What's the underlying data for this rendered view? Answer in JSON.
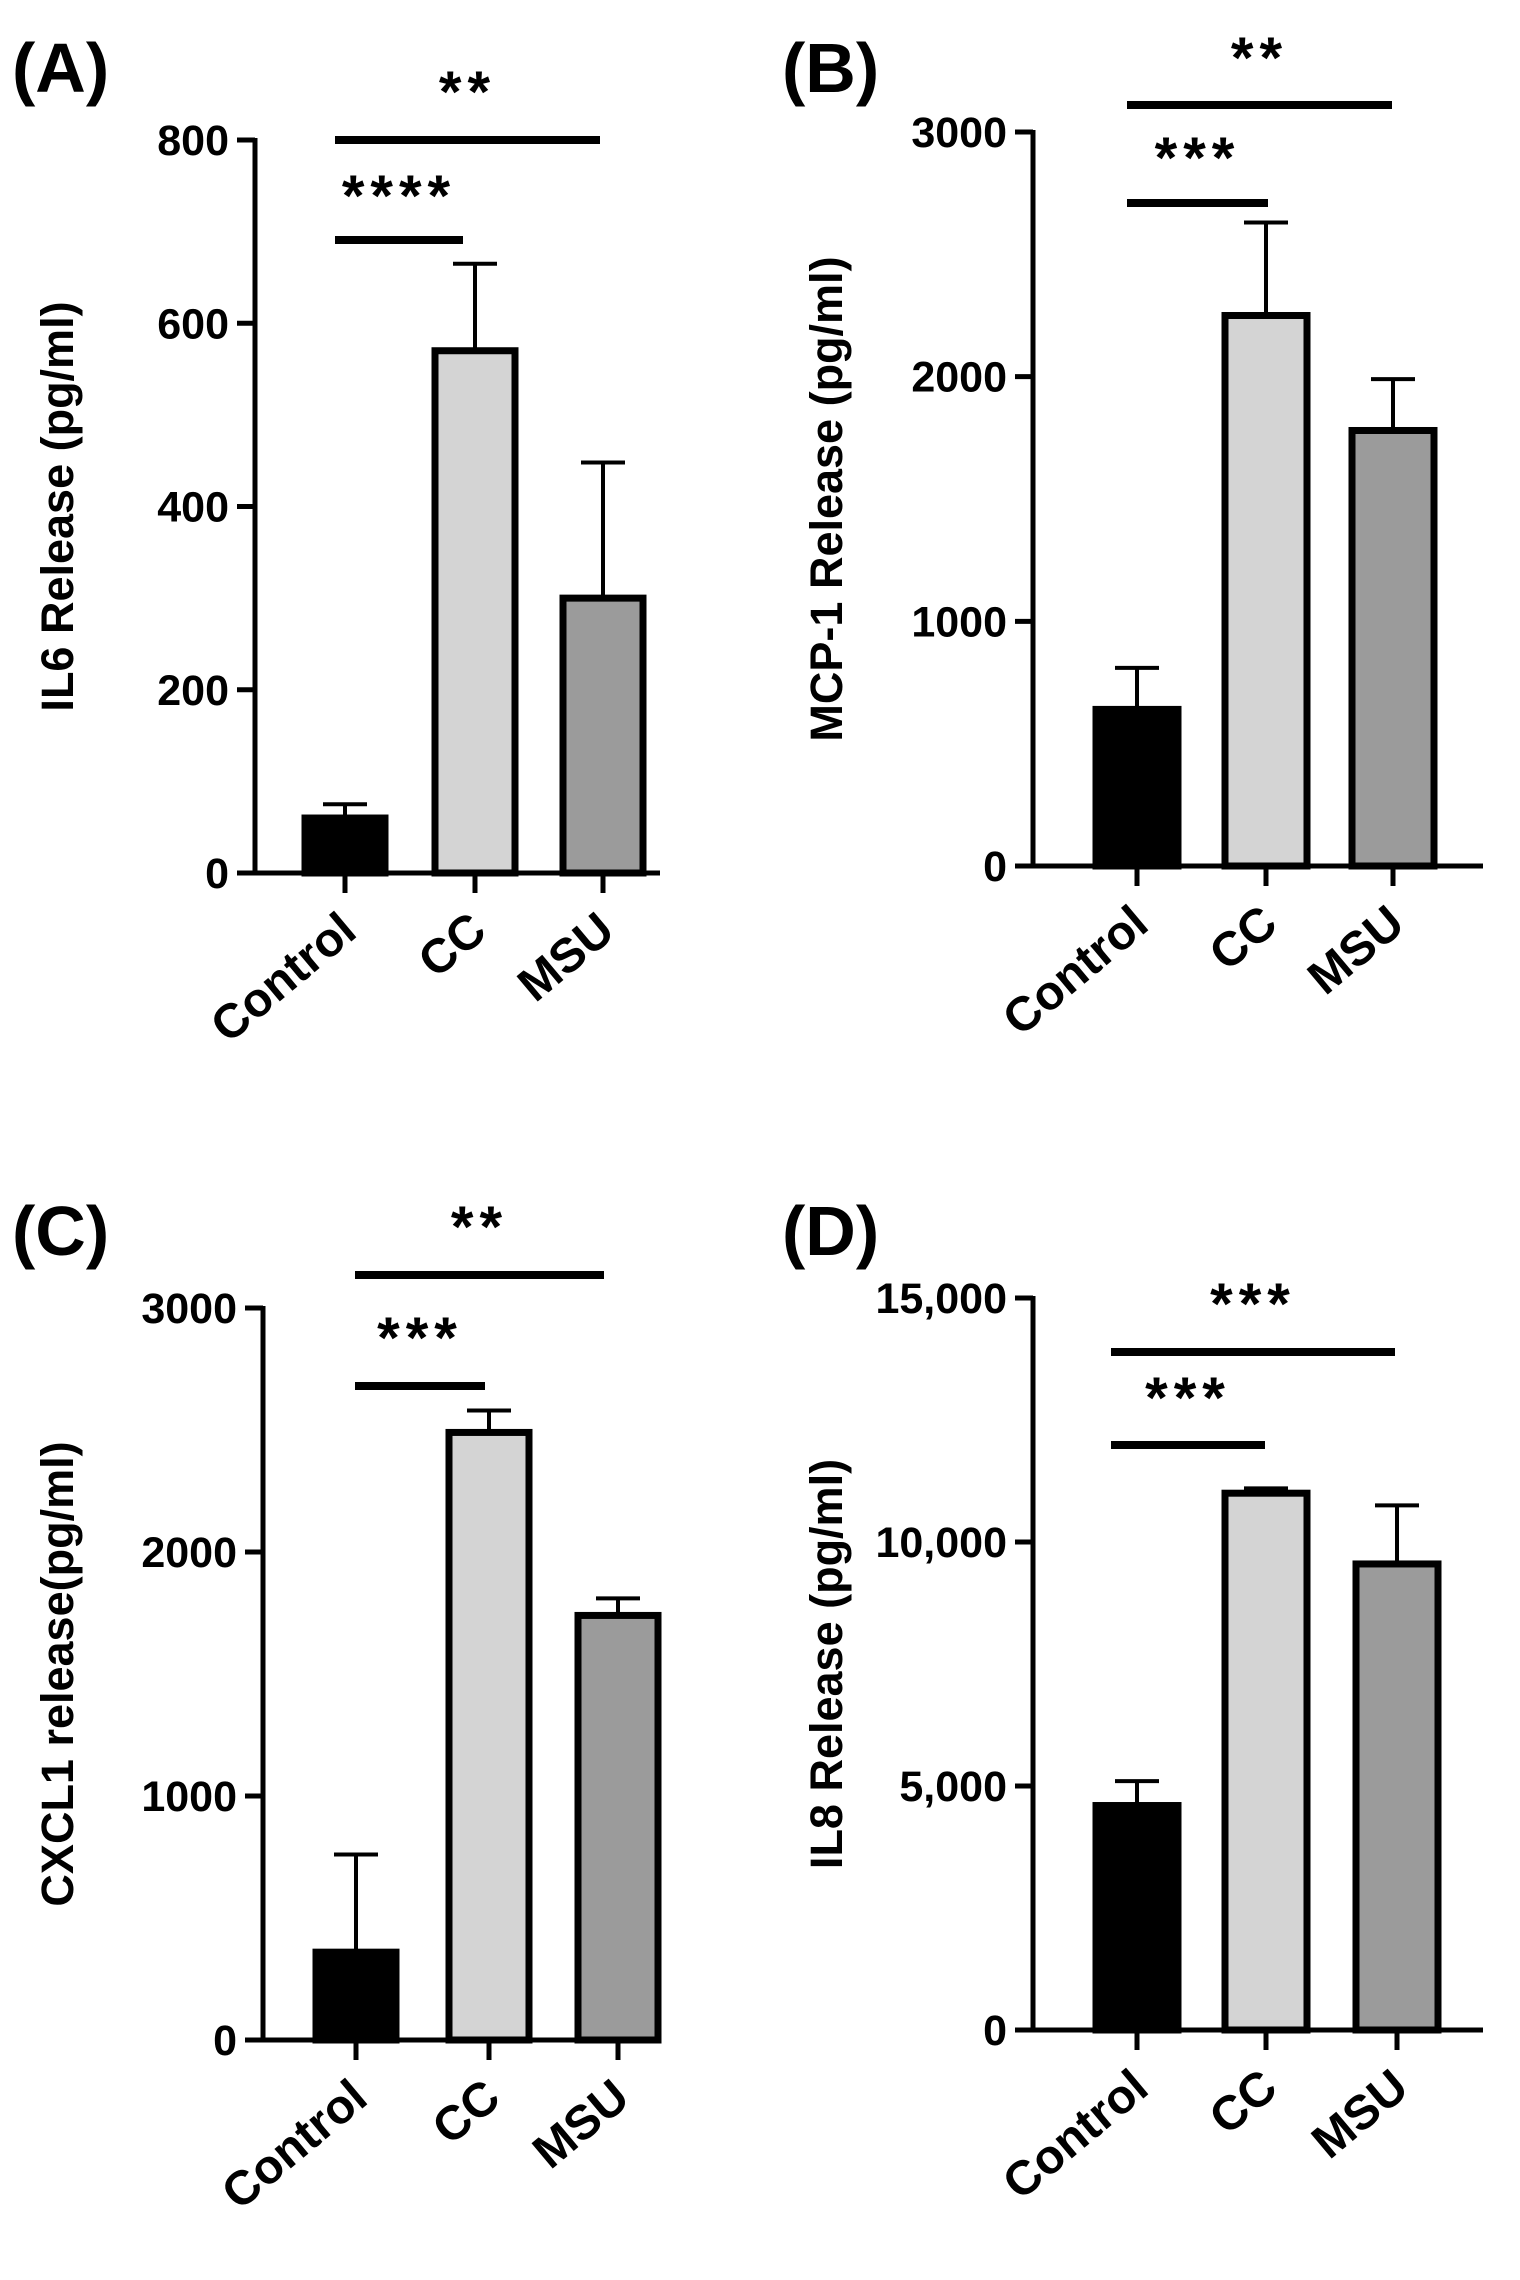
{
  "chart_data": [
    {
      "type": "bar",
      "panel": "(A)",
      "categories": [
        "Control",
        "CC",
        "MSU"
      ],
      "values": [
        60,
        570,
        300
      ],
      "errors": [
        15,
        95,
        148
      ],
      "ylabel": "IL6 Release (pg/ml)",
      "ylim": [
        0,
        800
      ],
      "yticks": [
        0,
        200,
        400,
        600,
        800
      ],
      "ytick_labels": [
        "0",
        "200",
        "400",
        "600",
        "800"
      ],
      "bar_colors": [
        "#000000",
        "#d4d4d4",
        "#9b9b9b"
      ],
      "significance": [
        {
          "from": "Control",
          "to": "CC",
          "label": "****"
        },
        {
          "from": "Control",
          "to": "MSU",
          "label": "**"
        }
      ]
    },
    {
      "type": "bar",
      "panel": "(B)",
      "categories": [
        "Control",
        "CC",
        "MSU"
      ],
      "values": [
        640,
        2250,
        1780
      ],
      "errors": [
        170,
        380,
        210
      ],
      "ylabel": "MCP-1 Release (pg/ml)",
      "ylim": [
        0,
        3000
      ],
      "yticks": [
        0,
        1000,
        2000,
        3000
      ],
      "ytick_labels": [
        "0",
        "1000",
        "2000",
        "3000"
      ],
      "bar_colors": [
        "#000000",
        "#d4d4d4",
        "#9b9b9b"
      ],
      "significance": [
        {
          "from": "Control",
          "to": "CC",
          "label": "***"
        },
        {
          "from": "Control",
          "to": "MSU",
          "label": "**"
        }
      ]
    },
    {
      "type": "bar",
      "panel": "(C)",
      "categories": [
        "Control",
        "CC",
        "MSU"
      ],
      "values": [
        360,
        2490,
        1740
      ],
      "errors": [
        400,
        90,
        70
      ],
      "ylabel": "CXCL1 release(pg/ml)",
      "ylim": [
        0,
        3000
      ],
      "yticks": [
        0,
        1000,
        2000,
        3000
      ],
      "ytick_labels": [
        "0",
        "1000",
        "2000",
        "3000"
      ],
      "bar_colors": [
        "#000000",
        "#d4d4d4",
        "#9b9b9b"
      ],
      "significance": [
        {
          "from": "Control",
          "to": "CC",
          "label": "***"
        },
        {
          "from": "Control",
          "to": "MSU",
          "label": "**"
        }
      ]
    },
    {
      "type": "bar",
      "panel": "(D)",
      "categories": [
        "Control",
        "CC",
        "MSU"
      ],
      "values": [
        4600,
        11000,
        9550
      ],
      "errors": [
        500,
        100,
        1200
      ],
      "ylabel": "IL8 Release (pg/ml)",
      "ylim": [
        0,
        15000
      ],
      "yticks": [
        0,
        5000,
        10000,
        15000
      ],
      "ytick_labels": [
        "0",
        "5,000",
        "10,000",
        "15,000"
      ],
      "bar_colors": [
        "#000000",
        "#d4d4d4",
        "#9b9b9b"
      ],
      "significance": [
        {
          "from": "Control",
          "to": "CC",
          "label": "***"
        },
        {
          "from": "Control",
          "to": "MSU",
          "label": "***"
        }
      ]
    }
  ]
}
